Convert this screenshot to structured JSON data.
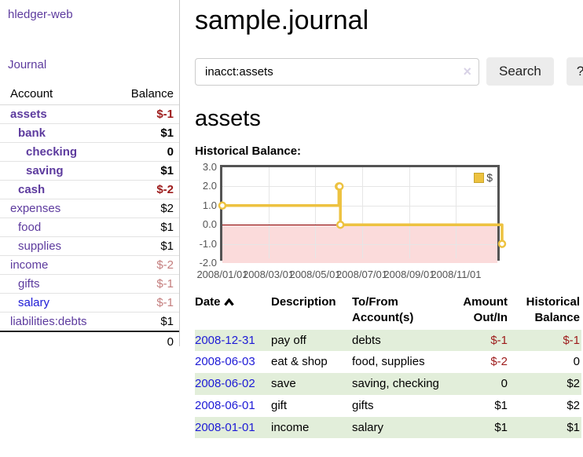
{
  "app": {
    "title": "hledger-web",
    "nav_journal": "Journal"
  },
  "sidebar": {
    "headers": {
      "account": "Account",
      "balance": "Balance"
    },
    "accounts": [
      {
        "name": "assets",
        "balance": "$-1",
        "depth": 1,
        "in_filter": true,
        "balance_tone": "negative"
      },
      {
        "name": "bank",
        "balance": "$1",
        "depth": 2,
        "in_filter": true,
        "balance_tone": "normal"
      },
      {
        "name": "checking",
        "balance": "0",
        "depth": 3,
        "in_filter": true,
        "balance_tone": "normal"
      },
      {
        "name": "saving",
        "balance": "$1",
        "depth": 3,
        "in_filter": true,
        "balance_tone": "normal"
      },
      {
        "name": "cash",
        "balance": "$-2",
        "depth": 2,
        "in_filter": true,
        "balance_tone": "negative"
      },
      {
        "name": "expenses",
        "balance": "$2",
        "depth": 1,
        "in_filter": false,
        "balance_tone": "normal"
      },
      {
        "name": "food",
        "balance": "$1",
        "depth": 2,
        "in_filter": false,
        "balance_tone": "normal"
      },
      {
        "name": "supplies",
        "balance": "$1",
        "depth": 2,
        "in_filter": false,
        "balance_tone": "normal"
      },
      {
        "name": "income",
        "balance": "$-2",
        "depth": 1,
        "in_filter": false,
        "balance_tone": "faded_negative"
      },
      {
        "name": "gifts",
        "balance": "$-1",
        "depth": 2,
        "in_filter": false,
        "balance_tone": "faded_negative"
      },
      {
        "name": "salary",
        "balance": "$-1",
        "depth": 2,
        "in_filter": false,
        "balance_tone": "faded_negative",
        "unvisited": true
      },
      {
        "name": "liabilities:debts",
        "balance": "$1",
        "depth": 1,
        "in_filter": false,
        "balance_tone": "normal"
      }
    ],
    "total": "0"
  },
  "main": {
    "title": "sample.journal",
    "search": {
      "value": "inacct:assets",
      "clear_icon": "×",
      "search_button": "Search",
      "help_button": "?"
    },
    "account_heading": "assets",
    "section_label": "Historical Balance:"
  },
  "register": {
    "headers": {
      "date": "Date",
      "description": "Description",
      "accounts": "To/From Account(s)",
      "amount": "Amount Out/In",
      "balance": "Historical Balance"
    },
    "sort": {
      "column": "date",
      "direction": "ascending"
    },
    "rows": [
      {
        "date": "2008-12-31",
        "description": "pay off",
        "accounts": "debts",
        "amount": "$-1",
        "balance": "$-1",
        "amount_negative": true,
        "balance_negative": true
      },
      {
        "date": "2008-06-03",
        "description": "eat & shop",
        "accounts": "food, supplies",
        "amount": "$-2",
        "balance": "0",
        "amount_negative": true,
        "balance_negative": false
      },
      {
        "date": "2008-06-02",
        "description": "save",
        "accounts": "saving, checking",
        "amount": "0",
        "balance": "$2",
        "amount_negative": false,
        "balance_negative": false
      },
      {
        "date": "2008-06-01",
        "description": "gift",
        "accounts": "gifts",
        "amount": "$1",
        "balance": "$2",
        "amount_negative": false,
        "balance_negative": false
      },
      {
        "date": "2008-01-01",
        "description": "income",
        "accounts": "salary",
        "amount": "$1",
        "balance": "$1",
        "amount_negative": false,
        "balance_negative": false
      }
    ]
  },
  "chart_data": {
    "type": "line",
    "step": true,
    "title": "Historical Balance:",
    "series": [
      {
        "name": "$",
        "points": [
          {
            "x": "2008-01-01",
            "y": 1
          },
          {
            "x": "2008-06-01",
            "y": 2
          },
          {
            "x": "2008-06-02",
            "y": 2
          },
          {
            "x": "2008-06-03",
            "y": 0
          },
          {
            "x": "2008-12-31",
            "y": -1
          }
        ]
      }
    ],
    "xlim": [
      "2008-01-01",
      "2008-12-31"
    ],
    "ylim": [
      -2,
      3
    ],
    "x_ticks": [
      {
        "x": "2008-01-01",
        "label": "2008/01/01"
      },
      {
        "x": "2008-03-01",
        "label": "2008/03/01"
      },
      {
        "x": "2008-05-01",
        "label": "2008/05/01"
      },
      {
        "x": "2008-07-01",
        "label": "2008/07/01"
      },
      {
        "x": "2008-09-01",
        "label": "2008/09/01"
      },
      {
        "x": "2008-11-01",
        "label": "2008/11/01"
      }
    ],
    "y_ticks": [
      {
        "v": 3,
        "label": "3.0"
      },
      {
        "v": 2,
        "label": "2.0"
      },
      {
        "v": 1,
        "label": "1.0"
      },
      {
        "v": 0,
        "label": "0.0"
      },
      {
        "v": -1,
        "label": "-1.0"
      },
      {
        "v": -2,
        "label": "-2.0"
      }
    ],
    "legend": {
      "label": "$",
      "position": "top-right"
    },
    "colors": {
      "line": "#edc240",
      "marker_fill": "#ffffff",
      "grid": "#e6e6e6",
      "border": "#545454",
      "zero_line": "#8b0000",
      "negative_fill": "#fbdbdb"
    }
  },
  "colors": {
    "link_purple": "#5d3b9e",
    "link_blue": "#1d1ad6",
    "negative": "#9d1b1b",
    "faded_negative": "#c47e7e",
    "row_green": "#e2eeda"
  }
}
